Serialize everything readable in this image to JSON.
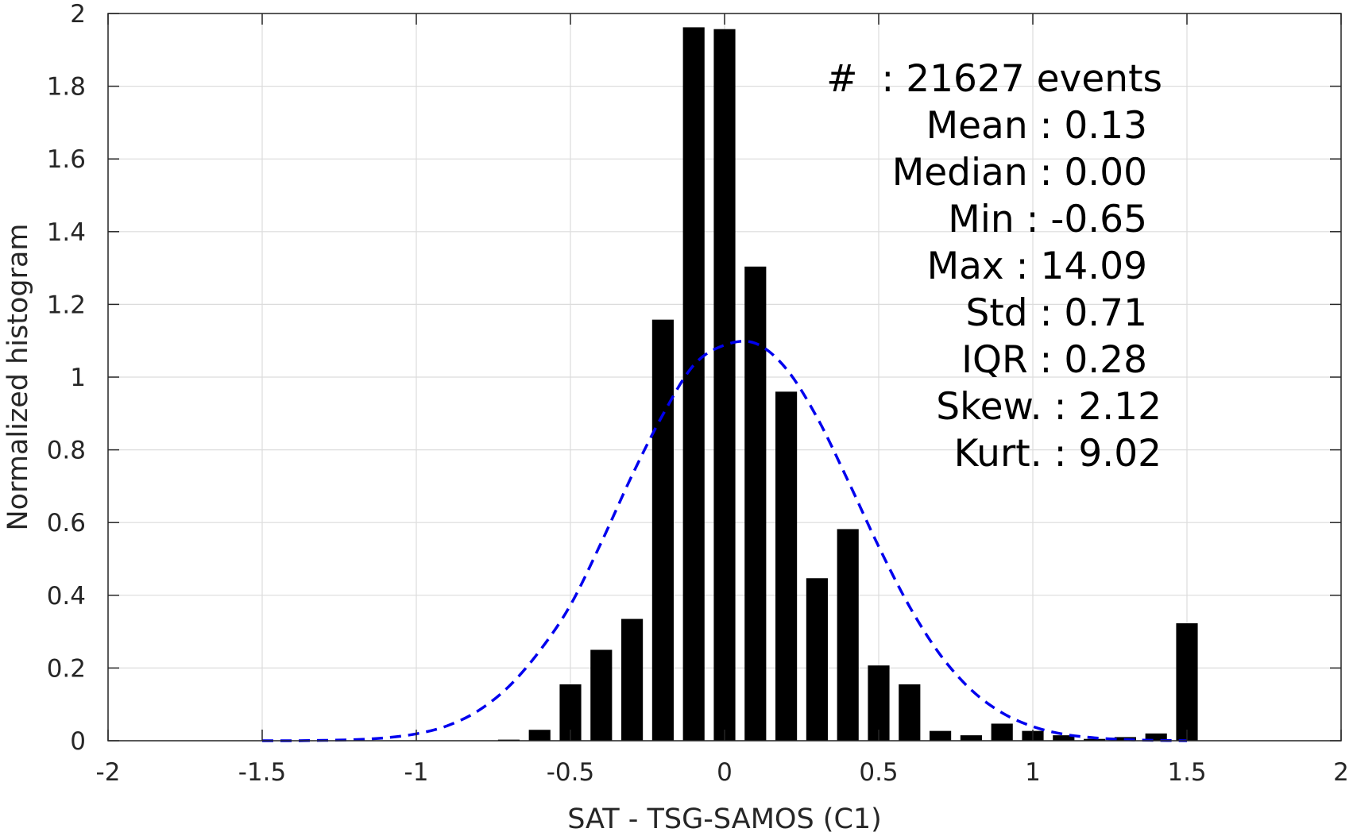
{
  "chart_data": {
    "type": "bar",
    "title": "",
    "xlabel": "SAT - TSG-SAMOS (C1)",
    "ylabel": "Normalized histogram",
    "xlim": [
      -2,
      2
    ],
    "ylim": [
      0,
      2
    ],
    "xticks": [
      -2,
      -1.5,
      -1,
      -0.5,
      0,
      0.5,
      1,
      1.5,
      2
    ],
    "xtick_labels": [
      "-2",
      "-1.5",
      "-1",
      "-0.5",
      "0",
      "0.5",
      "1",
      "1.5",
      "2"
    ],
    "yticks": [
      0,
      0.2,
      0.4,
      0.6,
      0.8,
      1,
      1.2,
      1.4,
      1.6,
      1.8,
      2
    ],
    "ytick_labels": [
      "0",
      "0.2",
      "0.4",
      "0.6",
      "0.8",
      "1",
      "1.2",
      "1.4",
      "1.6",
      "1.8",
      "2"
    ],
    "grid": true,
    "bar_color": "#000000",
    "bar_width": 0.07,
    "bars": {
      "x": [
        -0.7,
        -0.6,
        -0.5,
        -0.4,
        -0.3,
        -0.2,
        -0.1,
        0.0,
        0.1,
        0.2,
        0.3,
        0.4,
        0.5,
        0.6,
        0.7,
        0.8,
        0.9,
        1.0,
        1.1,
        1.2,
        1.3,
        1.4,
        1.5
      ],
      "y": [
        0.003,
        0.03,
        0.155,
        0.25,
        0.335,
        1.158,
        1.962,
        1.957,
        1.304,
        0.96,
        0.447,
        0.582,
        0.207,
        0.155,
        0.027,
        0.015,
        0.047,
        0.027,
        0.015,
        0.005,
        0.01,
        0.02,
        0.323
      ]
    },
    "fit_curve": {
      "style": "dashed",
      "color": "#0000ee",
      "x": [
        -1.5,
        -1.4,
        -1.3,
        -1.2,
        -1.1,
        -1.0,
        -0.9,
        -0.8,
        -0.7,
        -0.6,
        -0.5,
        -0.4,
        -0.3,
        -0.2,
        -0.1,
        0.0,
        0.1,
        0.2,
        0.3,
        0.4,
        0.5,
        0.6,
        0.7,
        0.8,
        0.9,
        1.0,
        1.1,
        1.2,
        1.3,
        1.4,
        1.5
      ],
      "y": [
        0.0,
        0.0,
        0.001,
        0.003,
        0.008,
        0.019,
        0.041,
        0.082,
        0.149,
        0.247,
        0.373,
        0.545,
        0.73,
        0.897,
        1.033,
        1.088,
        1.093,
        1.023,
        0.889,
        0.716,
        0.534,
        0.369,
        0.236,
        0.14,
        0.077,
        0.039,
        0.018,
        0.008,
        0.003,
        0.001,
        0.0
      ]
    },
    "annotation": {
      "events": "#  : 21627 events",
      "lines": [
        "Mean : 0.13",
        "Median : 0.00",
        "Min : -0.65",
        "Max : 14.09",
        "Std : 0.71",
        "IQR : 0.28",
        "Skew. : 2.12",
        "Kurt. : 9.02"
      ]
    }
  }
}
